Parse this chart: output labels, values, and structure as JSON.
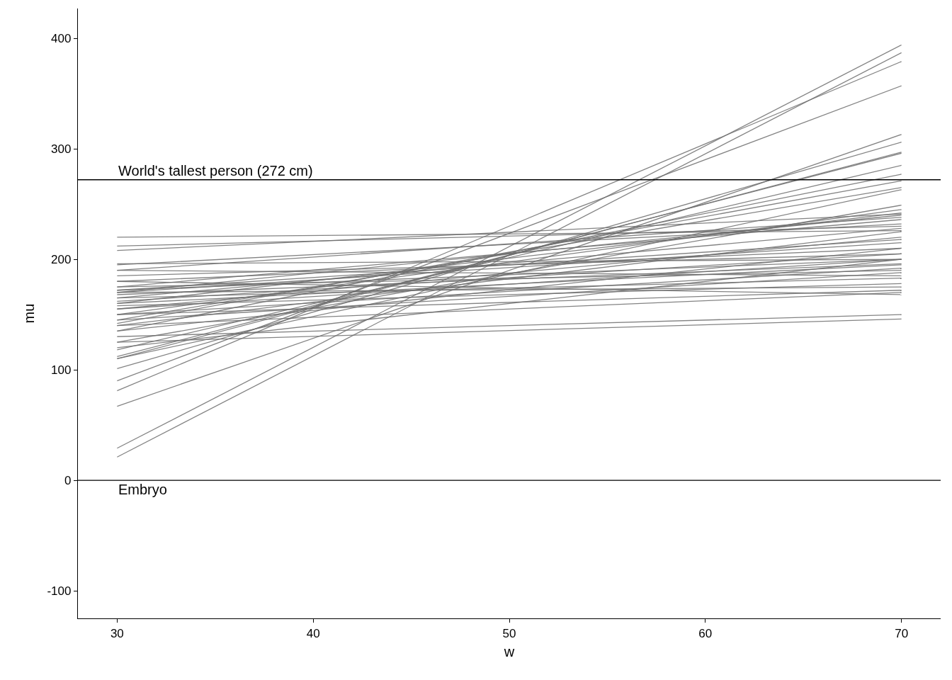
{
  "chart_data": {
    "type": "line",
    "xlabel": "w",
    "ylabel": "mu",
    "xlim": [
      28,
      72
    ],
    "ylim": [
      -125,
      427
    ],
    "xticks": [
      30,
      40,
      50,
      60,
      70
    ],
    "yticks": [
      -100,
      0,
      100,
      200,
      300,
      400
    ],
    "grid": false,
    "marker": "none",
    "line_style": "solid",
    "ref_lines": [
      {
        "axis": "y",
        "value": 272,
        "label": "World's tallest person (272 cm)",
        "color": "#000000"
      },
      {
        "axis": "y",
        "value": 0,
        "label": "Embryo",
        "color": "#000000"
      }
    ],
    "x": [
      30,
      70
    ],
    "series": [
      {
        "color": "#6e6e6e",
        "values": [
          21,
          387
        ]
      },
      {
        "color": "#6e6e6e",
        "values": [
          29,
          394
        ]
      },
      {
        "color": "#6e6e6e",
        "values": [
          81,
          379
        ]
      },
      {
        "color": "#6e6e6e",
        "values": [
          90,
          357
        ]
      },
      {
        "color": "#6e6e6e",
        "values": [
          67,
          313
        ]
      },
      {
        "color": "#6e6e6e",
        "values": [
          101,
          306
        ]
      },
      {
        "color": "#6e6e6e",
        "values": [
          110,
          297
        ]
      },
      {
        "color": "#6e6e6e",
        "values": [
          112,
          296
        ]
      },
      {
        "color": "#6e6e6e",
        "values": [
          118,
          285
        ]
      },
      {
        "color": "#6e6e6e",
        "values": [
          135,
          277
        ]
      },
      {
        "color": "#6e6e6e",
        "values": [
          142,
          271
        ]
      },
      {
        "color": "#6e6e6e",
        "values": [
          145,
          265
        ]
      },
      {
        "color": "#6e6e6e",
        "values": [
          110,
          263
        ]
      },
      {
        "color": "#6e6e6e",
        "values": [
          125,
          249
        ]
      },
      {
        "color": "#6e6e6e",
        "values": [
          150,
          245
        ]
      },
      {
        "color": "#6e6e6e",
        "values": [
          160,
          242
        ]
      },
      {
        "color": "#6e6e6e",
        "values": [
          170,
          240
        ]
      },
      {
        "color": "#6e6e6e",
        "values": [
          175,
          236
        ]
      },
      {
        "color": "#6e6e6e",
        "values": [
          190,
          238
        ]
      },
      {
        "color": "#6e6e6e",
        "values": [
          195,
          232
        ]
      },
      {
        "color": "#6e6e6e",
        "values": [
          208,
          241
        ]
      },
      {
        "color": "#6e6e6e",
        "values": [
          212,
          230
        ]
      },
      {
        "color": "#6e6e6e",
        "values": [
          220,
          226
        ]
      },
      {
        "color": "#6e6e6e",
        "values": [
          165,
          228
        ]
      },
      {
        "color": "#6e6e6e",
        "values": [
          140,
          225
        ]
      },
      {
        "color": "#6e6e6e",
        "values": [
          155,
          220
        ]
      },
      {
        "color": "#6e6e6e",
        "values": [
          170,
          215
        ]
      },
      {
        "color": "#6e6e6e",
        "values": [
          180,
          210
        ]
      },
      {
        "color": "#6e6e6e",
        "values": [
          185,
          205
        ]
      },
      {
        "color": "#6e6e6e",
        "values": [
          172,
          200
        ]
      },
      {
        "color": "#6e6e6e",
        "values": [
          168,
          196
        ]
      },
      {
        "color": "#6e6e6e",
        "values": [
          160,
          195
        ]
      },
      {
        "color": "#6e6e6e",
        "values": [
          150,
          192
        ]
      },
      {
        "color": "#6e6e6e",
        "values": [
          145,
          188
        ]
      },
      {
        "color": "#6e6e6e",
        "values": [
          175,
          190
        ]
      },
      {
        "color": "#6e6e6e",
        "values": [
          190,
          185
        ]
      },
      {
        "color": "#6e6e6e",
        "values": [
          196,
          200
        ]
      },
      {
        "color": "#6e6e6e",
        "values": [
          165,
          183
        ]
      },
      {
        "color": "#6e6e6e",
        "values": [
          158,
          178
        ]
      },
      {
        "color": "#6e6e6e",
        "values": [
          150,
          172
        ]
      },
      {
        "color": "#6e6e6e",
        "values": [
          140,
          170
        ]
      },
      {
        "color": "#6e6e6e",
        "values": [
          170,
          175
        ]
      },
      {
        "color": "#6e6e6e",
        "values": [
          180,
          168
        ]
      },
      {
        "color": "#6e6e6e",
        "values": [
          130,
          150
        ]
      },
      {
        "color": "#6e6e6e",
        "values": [
          125,
          146
        ]
      },
      {
        "color": "#6e6e6e",
        "values": [
          162,
          205
        ]
      },
      {
        "color": "#6e6e6e",
        "values": [
          155,
          200
        ]
      },
      {
        "color": "#6e6e6e",
        "values": [
          172,
          218
        ]
      },
      {
        "color": "#6e6e6e",
        "values": [
          120,
          200
        ]
      },
      {
        "color": "#6e6e6e",
        "values": [
          135,
          210
        ]
      }
    ]
  }
}
